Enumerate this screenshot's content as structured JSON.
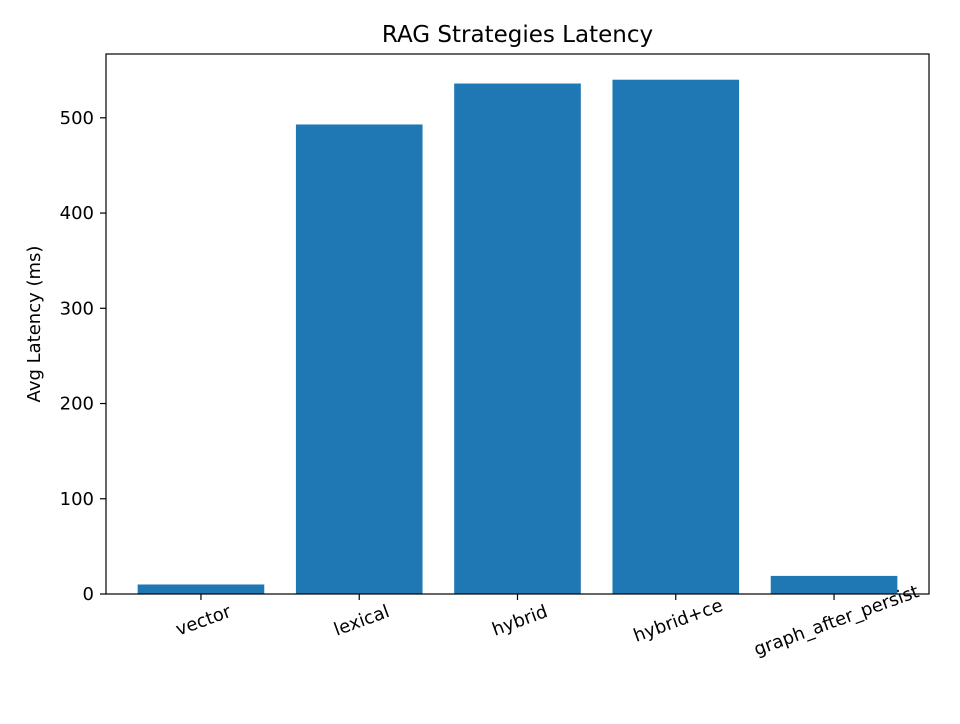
{
  "chart_data": {
    "type": "bar",
    "title": "RAG Strategies Latency",
    "xlabel": "",
    "ylabel": "Avg Latency (ms)",
    "categories": [
      "vector",
      "lexical",
      "hybrid",
      "hybrid+ce",
      "graph_after_persist"
    ],
    "values": [
      10,
      493,
      536,
      540,
      19
    ],
    "ylim": [
      0,
      567
    ],
    "yticks": [
      0,
      100,
      200,
      300,
      400,
      500
    ],
    "grid": false,
    "bar_color": "#1f77b4"
  }
}
